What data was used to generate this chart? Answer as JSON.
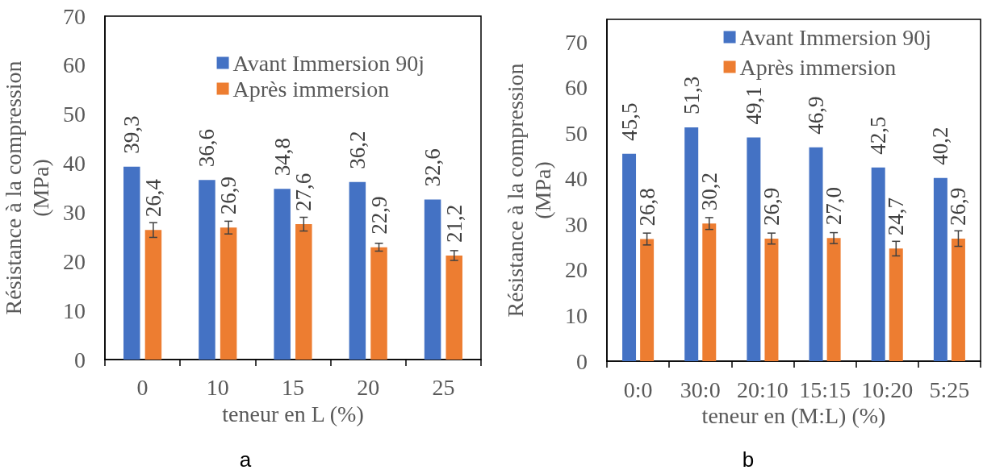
{
  "chart_data": [
    {
      "type": "bar",
      "categories": [
        "0",
        "10",
        "15",
        "20",
        "25"
      ],
      "xlabel": "teneur en L (%)",
      "ylabel": "Résistance à la compression (MPa)",
      "ylim": [
        0,
        70
      ],
      "yticks": [
        0,
        10,
        20,
        30,
        40,
        50,
        60,
        70
      ],
      "legend": "top right",
      "series": [
        {
          "name": "Avant Immersion 90j",
          "color": "#4472c4",
          "values": [
            39.3,
            36.6,
            34.8,
            36.2,
            32.6
          ],
          "value_labels": [
            "39,3",
            "36,6",
            "34,8",
            "36,2",
            "32,6"
          ]
        },
        {
          "name": "Après immersion",
          "color": "#ed7d31",
          "values": [
            26.4,
            26.9,
            27.6,
            22.9,
            21.2
          ],
          "value_labels": [
            "26,4",
            "26,9",
            "27,6",
            "22,9",
            "21,2"
          ],
          "errors": [
            1.5,
            1.3,
            1.4,
            0.8,
            1.0
          ]
        }
      ],
      "annotations": [
        "a"
      ]
    },
    {
      "type": "bar",
      "categories": [
        "0:0",
        "30:0",
        "20:10",
        "15:15",
        "10:20",
        "5:25"
      ],
      "xlabel": "teneur en (M:L) (%)",
      "ylabel": "Résistance à la compression (MPa)",
      "ylim": [
        0,
        75
      ],
      "yticks": [
        0,
        10,
        20,
        30,
        40,
        50,
        60,
        70
      ],
      "legend": "top right",
      "series": [
        {
          "name": "Avant Immersion 90j",
          "color": "#4472c4",
          "values": [
            45.5,
            51.3,
            49.1,
            46.9,
            42.5,
            40.2
          ],
          "value_labels": [
            "45,5",
            "51,3",
            "49,1",
            "46,9",
            "42,5",
            "40,2"
          ]
        },
        {
          "name": "Après immersion",
          "color": "#ed7d31",
          "values": [
            26.8,
            30.2,
            26.9,
            27.0,
            24.7,
            26.9
          ],
          "value_labels": [
            "26,8",
            "30,2",
            "26,9",
            "27,0",
            "24,7",
            "26,9"
          ],
          "errors": [
            1.3,
            1.3,
            1.2,
            1.2,
            1.6,
            1.7
          ]
        }
      ],
      "annotations": [
        "b"
      ]
    }
  ]
}
